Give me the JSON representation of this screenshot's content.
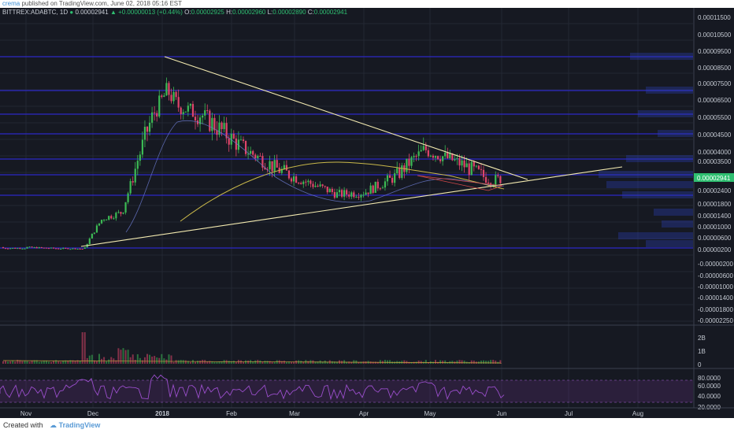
{
  "header": {
    "author": "crema",
    "published": "published on TradingView.com, June 02, 2018 05:16 EST"
  },
  "ticker": {
    "symbol": "BITTREX:ADABTC, 1D",
    "last": "0.00002941",
    "change": "▲ +0.00000013 (+0.44%)",
    "open_label": "O:",
    "open": "0.00002925",
    "high_label": "H:",
    "high": "0.00002960",
    "low_label": "L:",
    "low": "0.00002890",
    "close_label": "C:",
    "close": "0.00002941"
  },
  "price_axis": {
    "labels": [
      "0.00011500",
      "0.00010500",
      "0.00009500",
      "0.00008500",
      "0.00007500",
      "0.00006500",
      "0.00005500",
      "0.00004500",
      "0.00004000",
      "0.00003500",
      "0.00002941",
      "0.00002400",
      "0.00001800",
      "0.00001400",
      "0.00001000",
      "0.00000600",
      "0.00000200",
      "-0.00000200",
      "-0.00000600",
      "-0.00001000",
      "-0.00001400",
      "-0.00001800",
      "-0.00002250"
    ],
    "current_price_label": "0.00002941"
  },
  "volume_axis": {
    "labels": [
      "2B",
      "1B",
      "0"
    ]
  },
  "rsi_axis": {
    "labels": [
      "80.0000",
      "60.0000",
      "40.0000",
      "20.0000"
    ]
  },
  "time_axis": {
    "labels": [
      "Nov",
      "Dec",
      "2018",
      "Feb",
      "Mar",
      "Apr",
      "May",
      "Jun",
      "Jul",
      "Aug"
    ]
  },
  "footer": {
    "created_with": "Created with",
    "brand": "TradingView"
  },
  "colors": {
    "background": "#161922",
    "bull": "#3cba54",
    "bear": "#e0456a",
    "trendline": "#f3eab0",
    "sr_line": "#2e2ad8",
    "rsi": "#8a3fb0"
  },
  "chart_data": {
    "type": "candlestick",
    "series": [
      {
        "name": "ADABTC",
        "points": [
          {
            "date": "2017-11-01",
            "close": 2.5e-06
          },
          {
            "date": "2017-11-15",
            "close": 2.1e-06
          },
          {
            "date": "2017-11-27",
            "close": 2e-06
          },
          {
            "date": "2017-12-05",
            "close": 1.25e-05
          },
          {
            "date": "2017-12-14",
            "close": 1.5e-05
          },
          {
            "date": "2017-12-24",
            "close": 4.6e-05
          },
          {
            "date": "2018-01-03",
            "close": 7e-05
          },
          {
            "date": "2018-01-08",
            "close": 6e-05
          },
          {
            "date": "2018-01-18",
            "close": 5.5e-05
          },
          {
            "date": "2018-02-05",
            "close": 4.2e-05
          },
          {
            "date": "2018-02-20",
            "close": 3.3e-05
          },
          {
            "date": "2018-03-05",
            "close": 2.8e-05
          },
          {
            "date": "2018-03-20",
            "close": 2.2e-05
          },
          {
            "date": "2018-04-01",
            "close": 2.3e-05
          },
          {
            "date": "2018-04-15",
            "close": 3e-05
          },
          {
            "date": "2018-04-28",
            "close": 4.1e-05
          },
          {
            "date": "2018-05-15",
            "close": 3.4e-05
          },
          {
            "date": "2018-05-28",
            "close": 2.8e-05
          },
          {
            "date": "2018-06-02",
            "close": 2.941e-05
          }
        ]
      }
    ],
    "volume_axis_labels": [
      "2B",
      "1B",
      "0"
    ],
    "rsi_levels": [
      80,
      60,
      40,
      20
    ]
  }
}
